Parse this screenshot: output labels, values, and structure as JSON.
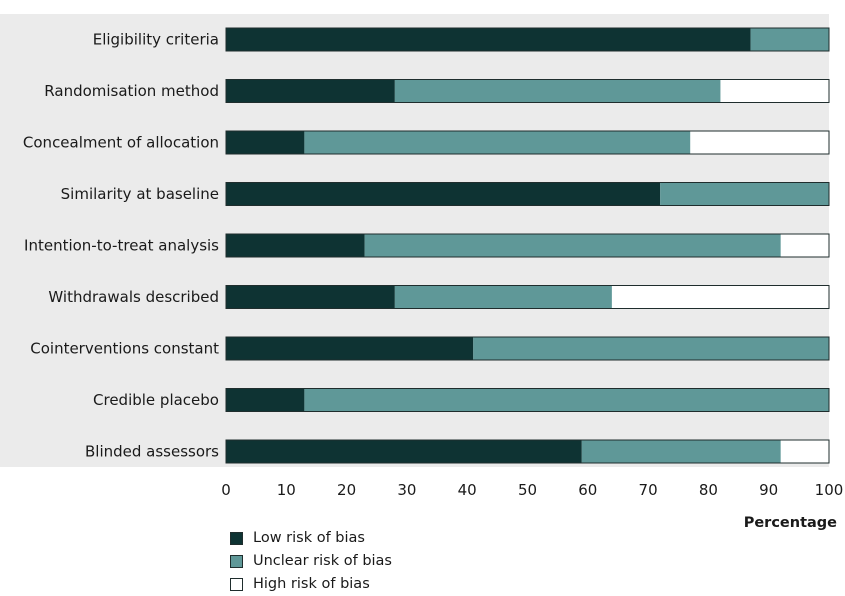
{
  "chart_data": {
    "type": "bar",
    "orientation": "horizontal",
    "stacked": true,
    "categories": [
      "Eligibility criteria",
      "Randomisation method",
      "Concealment of allocation",
      "Similarity at baseline",
      "Intention-to-treat analysis",
      "Withdrawals described",
      "Cointerventions constant",
      "Credible placebo",
      "Blinded assessors"
    ],
    "series": [
      {
        "name": "Low risk of bias",
        "color": "#0e3333",
        "values": [
          87,
          28,
          13,
          72,
          23,
          28,
          41,
          13,
          59
        ]
      },
      {
        "name": "Unclear risk of bias",
        "color": "#5f9898",
        "values": [
          13,
          54,
          64,
          28,
          69,
          36,
          59,
          87,
          33
        ]
      },
      {
        "name": "High risk of bias",
        "color": "#ffffff",
        "values": [
          0,
          18,
          23,
          0,
          8,
          36,
          0,
          0,
          8
        ]
      }
    ],
    "xlabel": "Percentage",
    "xlim": [
      0,
      100
    ],
    "xticks": [
      0,
      10,
      20,
      30,
      40,
      50,
      60,
      70,
      80,
      90,
      100
    ],
    "background": "#ebebeb",
    "legend_position": "bottom-left"
  }
}
